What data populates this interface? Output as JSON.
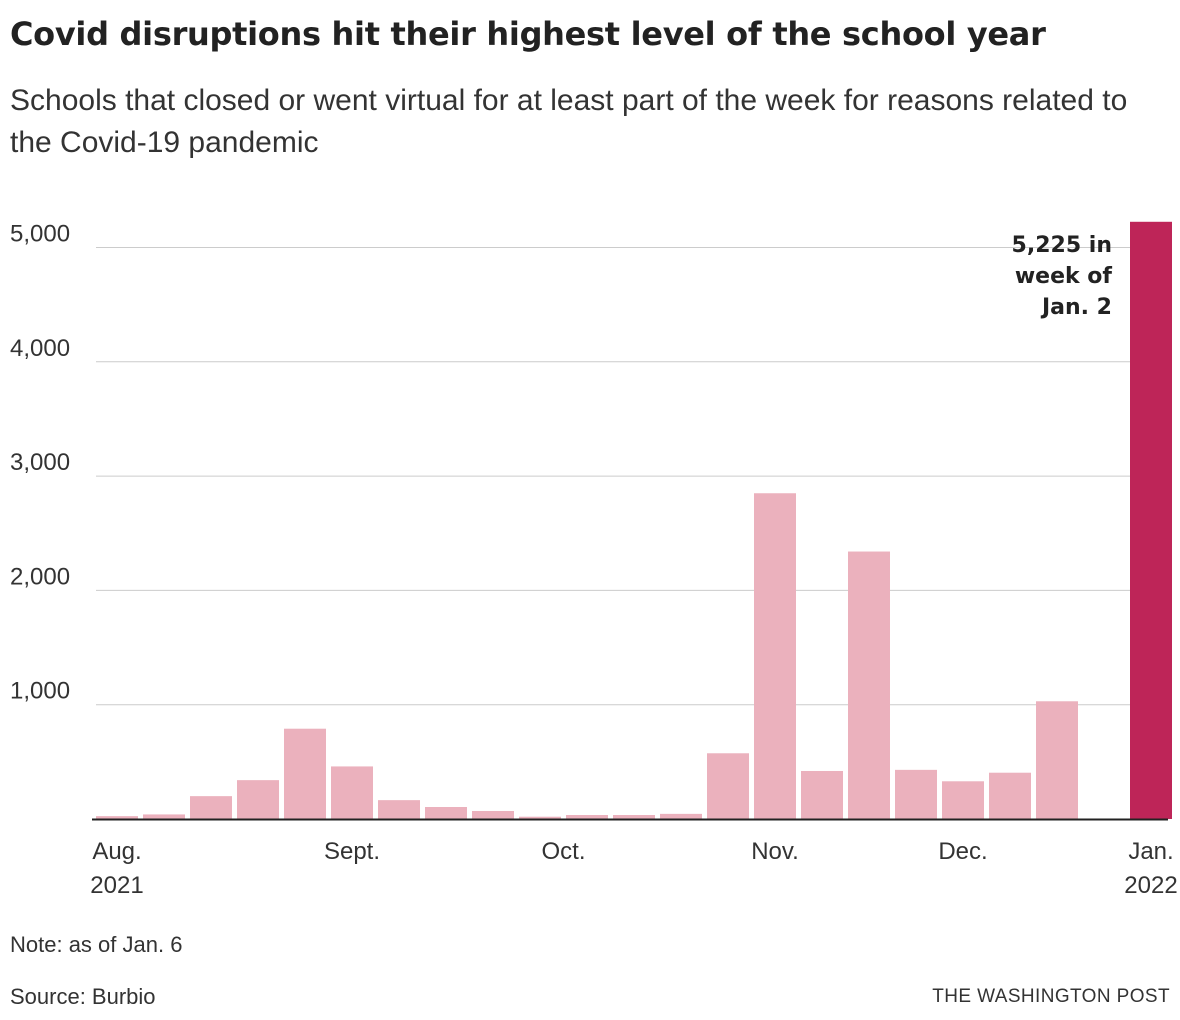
{
  "header": {
    "title": "Covid disruptions hit their highest level of the school year",
    "subtitle": "Schools that closed or went virtual for at least part of the week for reasons related to the Covid-19 pandemic"
  },
  "footer": {
    "note": "Note: as of Jan. 6",
    "source": "Source: Burbio",
    "credit": "THE WASHINGTON POST"
  },
  "chart_data": {
    "type": "bar",
    "title": "Covid disruptions hit their highest level of the school year",
    "subtitle": "Schools that closed or went virtual for at least part of the week for reasons related to the Covid-19 pandemic",
    "xlabel": "",
    "ylabel": "",
    "ylim": [
      0,
      5225
    ],
    "yticks": [
      1000,
      2000,
      3000,
      4000,
      5000
    ],
    "ytick_labels": [
      "1,000",
      "2,000",
      "3,000",
      "4,000",
      "5,000"
    ],
    "grid": true,
    "values": [
      25,
      40,
      200,
      340,
      790,
      460,
      165,
      105,
      70,
      20,
      35,
      35,
      45,
      575,
      2850,
      420,
      2340,
      430,
      330,
      405,
      1030,
      null,
      5225
    ],
    "xtick_labels": [
      {
        "index": 0,
        "lines": [
          "Aug.",
          "2021"
        ]
      },
      {
        "index": 5,
        "lines": [
          "Sept."
        ]
      },
      {
        "index": 9.5,
        "lines": [
          "Oct."
        ]
      },
      {
        "index": 14,
        "lines": [
          "Nov."
        ]
      },
      {
        "index": 18,
        "lines": [
          "Dec."
        ]
      },
      {
        "index": 22,
        "lines": [
          "Jan.",
          "2022"
        ]
      }
    ],
    "colors": {
      "bar": "#ebb1bd",
      "highlight": "#be2558",
      "grid": "#cccccc",
      "axis": "#222222"
    },
    "highlight_index": 22,
    "annotation": {
      "index": 22,
      "lines": [
        "5,225 in",
        "week of",
        "Jan. 2"
      ]
    }
  }
}
